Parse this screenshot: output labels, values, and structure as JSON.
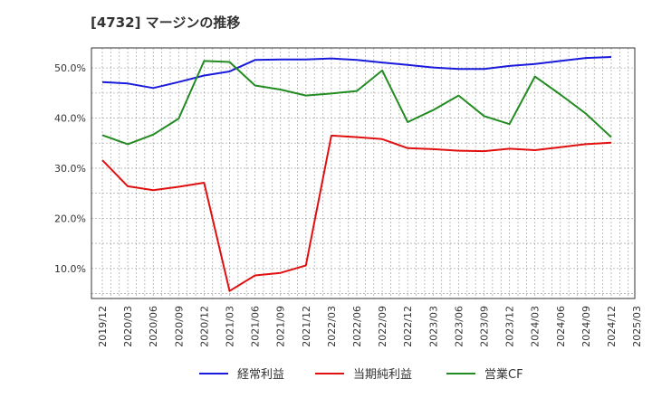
{
  "chart_data": {
    "type": "line",
    "title": "[4732]  マージンの推移",
    "xlabel": "",
    "ylabel": "",
    "categories": [
      "2019/12",
      "2020/03",
      "2020/06",
      "2020/09",
      "2020/12",
      "2021/03",
      "2021/06",
      "2021/09",
      "2021/12",
      "2022/03",
      "2022/06",
      "2022/09",
      "2022/12",
      "2023/03",
      "2023/06",
      "2023/09",
      "2023/12",
      "2024/03",
      "2024/06",
      "2024/09",
      "2024/12",
      "2025/03"
    ],
    "y_ticks": [
      "10.0%",
      "20.0%",
      "30.0%",
      "40.0%",
      "50.0%"
    ],
    "y_tick_values": [
      10,
      20,
      30,
      40,
      50
    ],
    "ylim": [
      4,
      54
    ],
    "grid": true,
    "legend_position": "bottom",
    "series": [
      {
        "name": "経常利益",
        "color": "#1a1adc",
        "values": [
          47.2,
          46.9,
          46.0,
          47.2,
          48.5,
          49.3,
          51.6,
          51.7,
          51.7,
          51.9,
          51.6,
          51.1,
          50.6,
          50.1,
          49.8,
          49.8,
          50.4,
          50.8,
          51.4,
          52.0,
          52.2,
          null
        ]
      },
      {
        "name": "当期純利益",
        "color": "#e01010",
        "values": [
          31.6,
          26.4,
          25.6,
          26.3,
          27.1,
          5.5,
          8.6,
          9.1,
          10.6,
          36.5,
          36.2,
          35.8,
          34.0,
          33.8,
          33.5,
          33.4,
          33.9,
          33.6,
          34.2,
          34.8,
          35.1,
          null
        ]
      },
      {
        "name": "営業CF",
        "color": "#228b22",
        "values": [
          36.6,
          34.8,
          36.7,
          39.9,
          51.4,
          51.2,
          46.5,
          45.7,
          44.5,
          44.9,
          45.4,
          49.5,
          39.2,
          41.6,
          44.5,
          40.4,
          38.8,
          48.3,
          44.7,
          40.9,
          36.2,
          null
        ]
      }
    ]
  }
}
